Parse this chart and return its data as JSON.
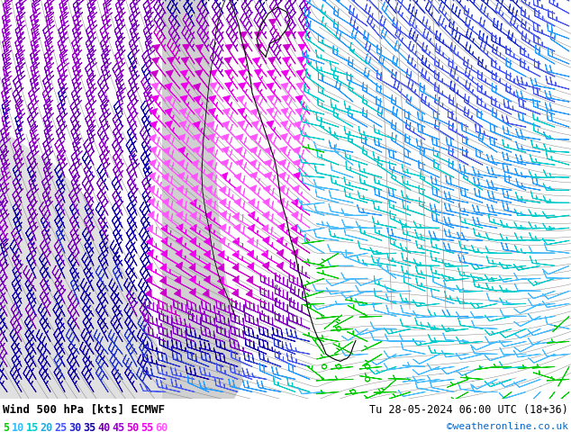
{
  "title_left": "Wind 500 hPa [kts] ECMWF",
  "title_right": "Tu 28-05-2024 06:00 UTC (18+36)",
  "credit": "©weatheronline.co.uk",
  "legend_labels": [
    "5",
    "10",
    "15",
    "20",
    "25",
    "30",
    "35",
    "40",
    "45",
    "50",
    "55",
    "60"
  ],
  "legend_colors": [
    "#00cc00",
    "#00aaff",
    "#00cccc",
    "#00aacc",
    "#5555ff",
    "#3333dd",
    "#2200bb",
    "#8800bb",
    "#aa00cc",
    "#cc00cc",
    "#ee00ee",
    "#ff44ff"
  ],
  "bg_color": "#ffffff",
  "land_green": "#c8f0a0",
  "land_gray": "#d8d8d8",
  "sea_gray": "#e0e0e0",
  "border_dark": "#000000",
  "border_gray": "#999999",
  "fig_width": 6.34,
  "fig_height": 4.9,
  "dpi": 100
}
